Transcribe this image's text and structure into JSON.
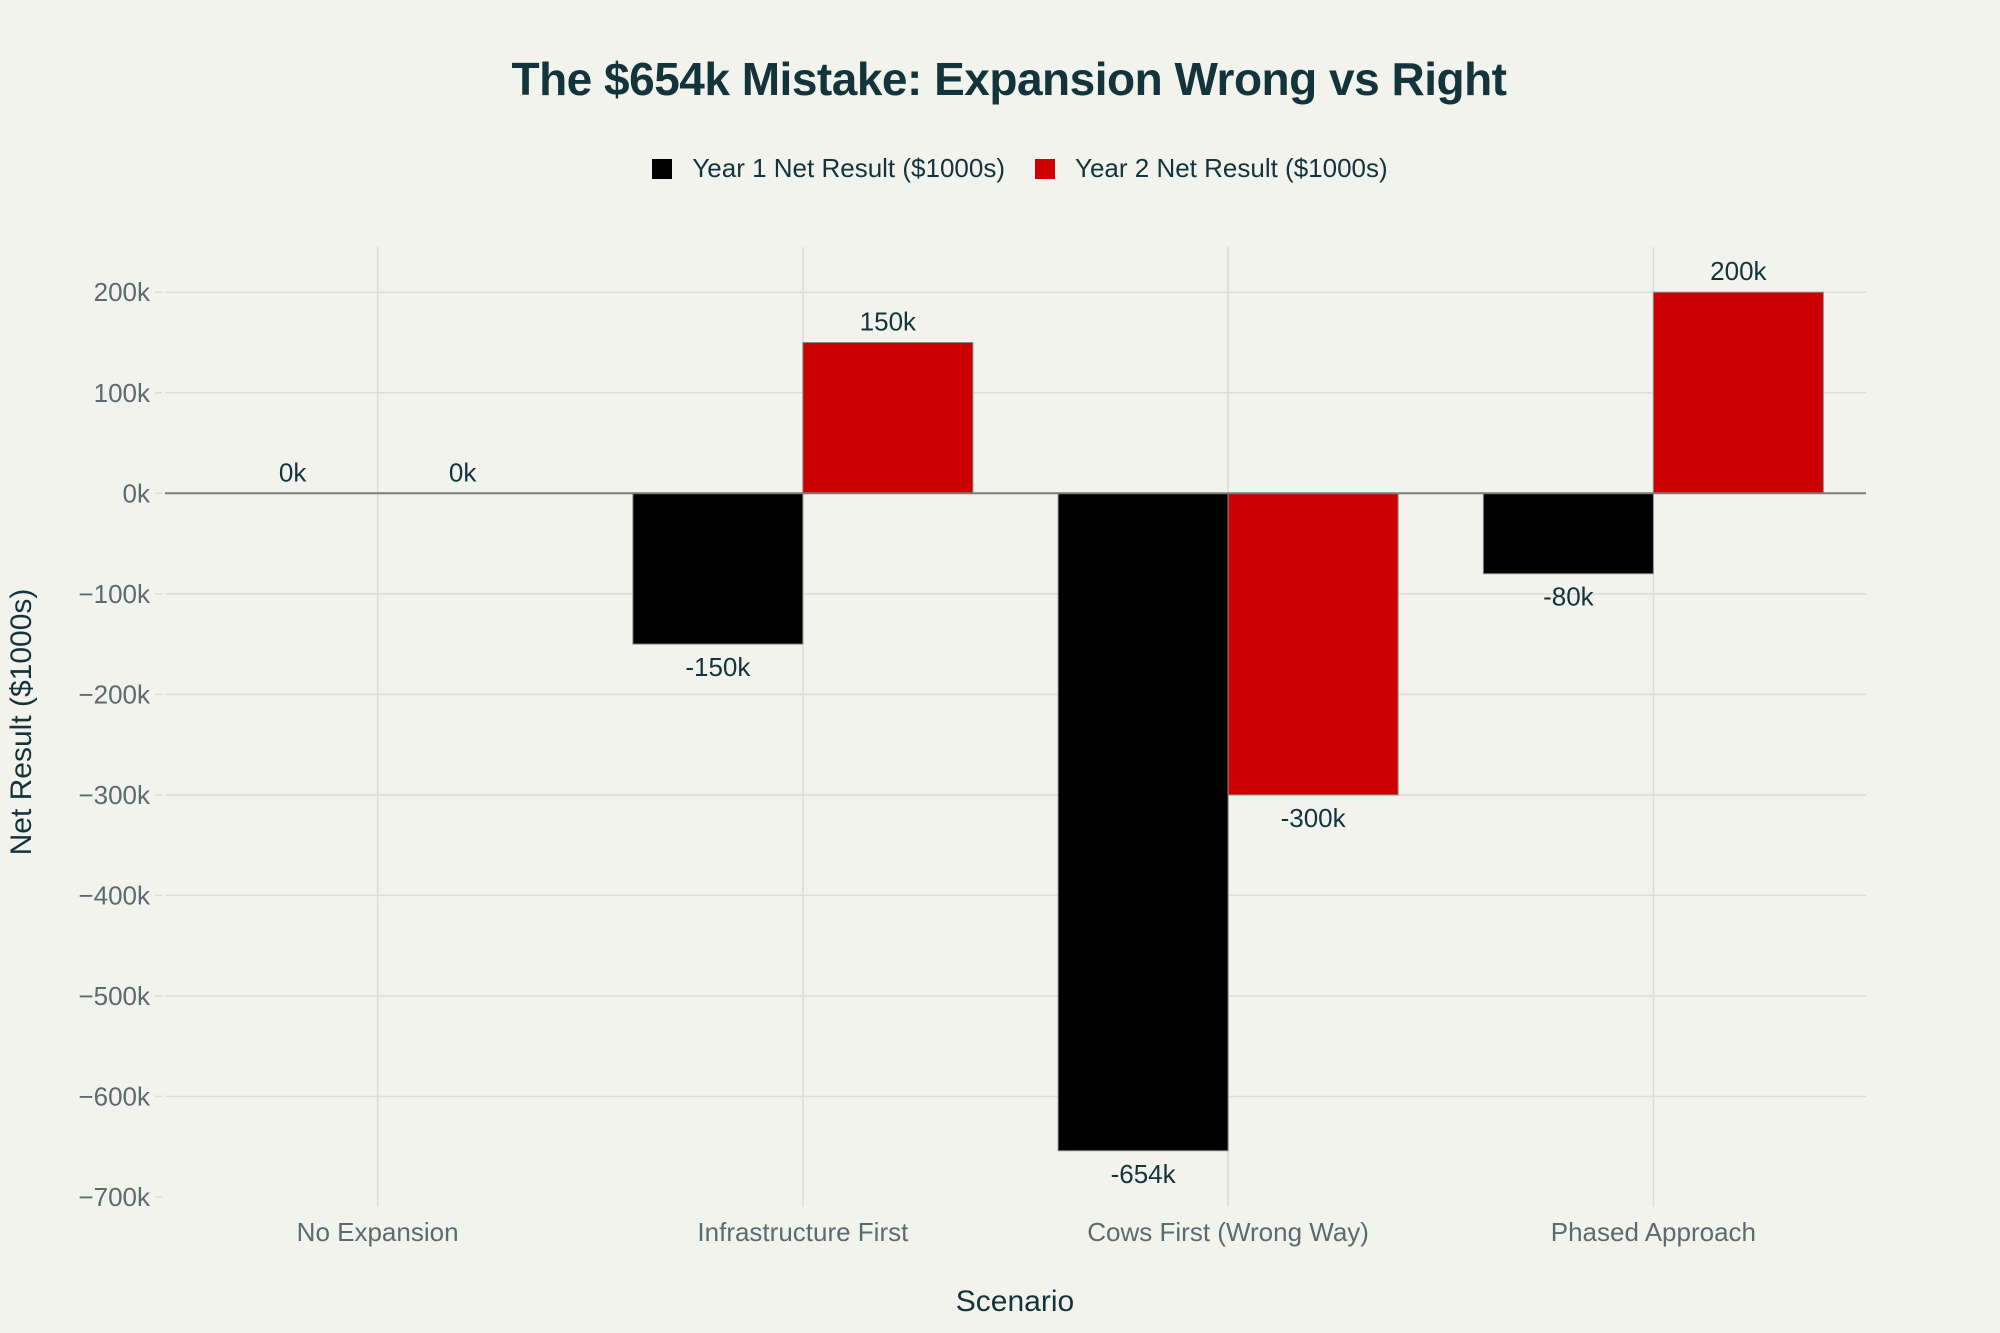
{
  "chart_data": {
    "type": "bar",
    "title": "The $654k Mistake: Expansion Wrong vs Right",
    "xlabel": "Scenario",
    "ylabel": "Net Result ($1000s)",
    "categories": [
      "No Expansion",
      "Infrastructure First",
      "Cows First (Wrong Way)",
      "Phased Approach"
    ],
    "series": [
      {
        "name": "Year 1 Net Result ($1000s)",
        "color": "#000000",
        "values": [
          0,
          -150,
          -654,
          -80
        ],
        "labels": [
          "0k",
          "-150k",
          "-654k",
          "-80k"
        ]
      },
      {
        "name": "Year 2 Net Result ($1000s)",
        "color": "#cc0000",
        "values": [
          0,
          150,
          -300,
          200
        ],
        "labels": [
          "0k",
          "150k",
          "-300k",
          "200k"
        ]
      }
    ],
    "ylim": [
      -700,
      245
    ],
    "yticks": [
      200,
      100,
      0,
      -100,
      -200,
      -300,
      -400,
      -500,
      -600,
      -700
    ],
    "ytick_labels": [
      "200k",
      "100k",
      "0k",
      "−100k",
      "−200k",
      "−300k",
      "−400k",
      "−500k",
      "−600k",
      "−700k"
    ],
    "grid": true,
    "legend_position": "top-center"
  }
}
